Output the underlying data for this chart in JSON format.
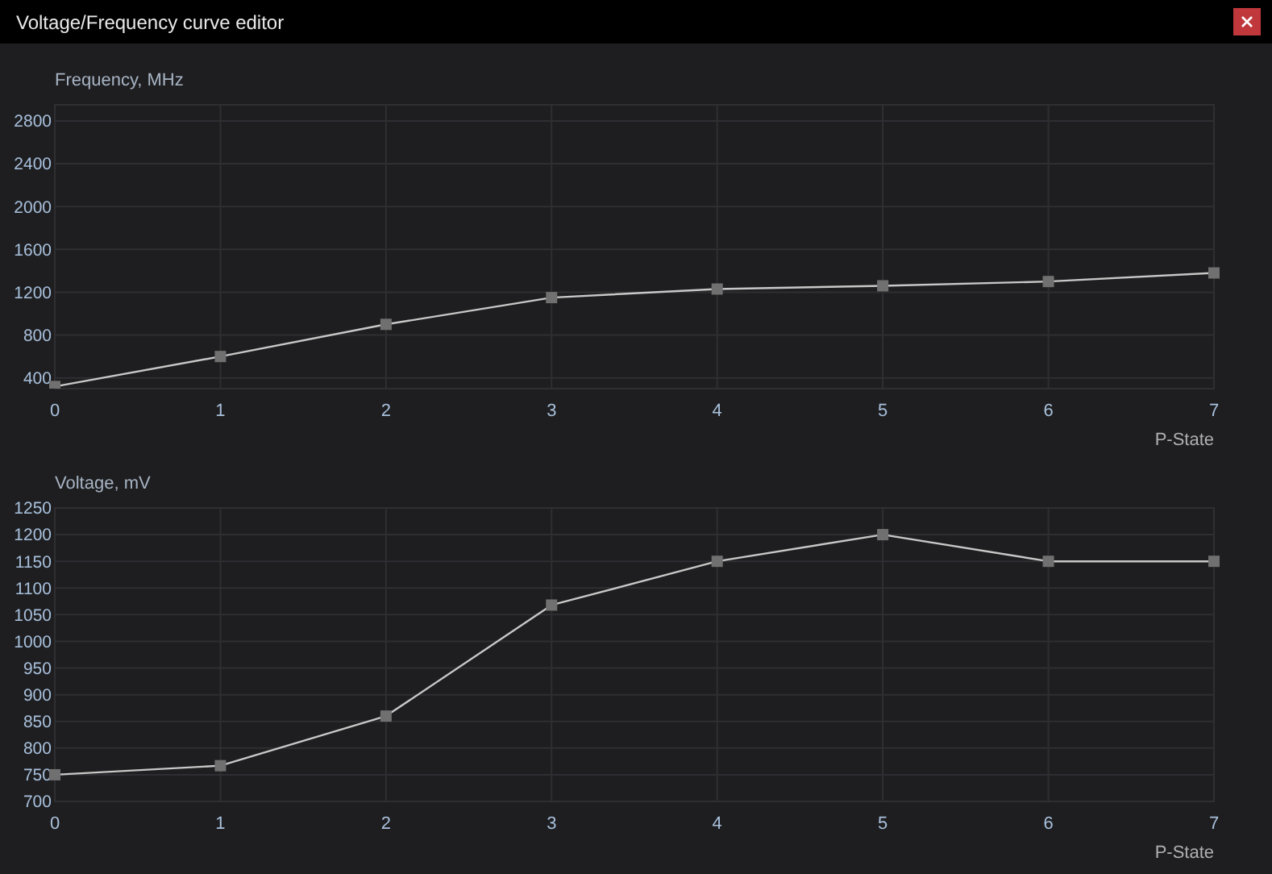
{
  "chart_data": [
    {
      "type": "line",
      "title": "Voltage/Frequency curve editor",
      "ylabel": "Frequency, MHz",
      "xlabel": "P-State",
      "x": [
        0,
        1,
        2,
        3,
        4,
        5,
        6,
        7
      ],
      "series": [
        {
          "color": "#c8c8c8",
          "values": [
            320,
            600,
            900,
            1150,
            1230,
            1260,
            1300,
            1380
          ]
        }
      ],
      "xlim": [
        0,
        7
      ],
      "xticks": [
        0,
        1,
        2,
        3,
        4,
        5,
        6,
        7
      ],
      "ylim": [
        300,
        2950
      ],
      "yticks": [
        400,
        800,
        1200,
        1600,
        2000,
        2400,
        2800
      ],
      "grid": true,
      "marker": "square"
    },
    {
      "type": "line",
      "ylabel": "Voltage, mV",
      "xlabel": "P-State",
      "x": [
        0,
        1,
        2,
        3,
        4,
        5,
        6,
        7
      ],
      "series": [
        {
          "color": "#c8c8c8",
          "values": [
            750,
            767,
            860,
            1068,
            1150,
            1200,
            1150,
            1150
          ]
        }
      ],
      "xlim": [
        0,
        7
      ],
      "xticks": [
        0,
        1,
        2,
        3,
        4,
        5,
        6,
        7
      ],
      "ylim": [
        700,
        1250
      ],
      "yticks": [
        700,
        750,
        800,
        850,
        900,
        950,
        1000,
        1050,
        1100,
        1150,
        1200,
        1250
      ],
      "grid": true,
      "marker": "square"
    }
  ]
}
